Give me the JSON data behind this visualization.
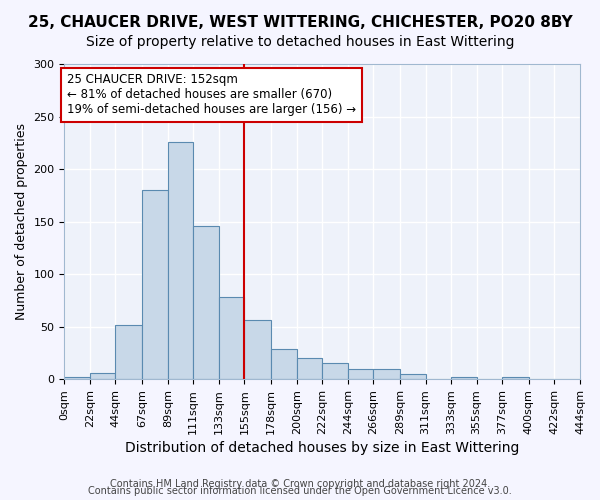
{
  "title": "25, CHAUCER DRIVE, WEST WITTERING, CHICHESTER, PO20 8BY",
  "subtitle": "Size of property relative to detached houses in East Wittering",
  "xlabel": "Distribution of detached houses by size in East Wittering",
  "ylabel": "Number of detached properties",
  "bar_color": "#c8d8e8",
  "bar_edge_color": "#5a8ab0",
  "background_color": "#eef2fa",
  "grid_color": "#ffffff",
  "vline_x": 155,
  "vline_color": "#cc0000",
  "annotation_title": "25 CHAUCER DRIVE: 152sqm",
  "annotation_line1": "← 81% of detached houses are smaller (670)",
  "annotation_line2": "19% of semi-detached houses are larger (156) →",
  "annotation_box_color": "#ffffff",
  "annotation_box_edge": "#cc0000",
  "bin_edges": [
    0,
    22,
    44,
    67,
    89,
    111,
    133,
    155,
    178,
    200,
    222,
    244,
    266,
    289,
    311,
    333,
    355,
    377,
    400,
    422,
    444
  ],
  "bin_heights": [
    2,
    6,
    52,
    180,
    226,
    146,
    78,
    56,
    29,
    20,
    15,
    10,
    10,
    5,
    0,
    2,
    0,
    2,
    0,
    0
  ],
  "tick_labels": [
    "0sqm",
    "22sqm",
    "44sqm",
    "67sqm",
    "89sqm",
    "111sqm",
    "133sqm",
    "155sqm",
    "178sqm",
    "200sqm",
    "222sqm",
    "244sqm",
    "266sqm",
    "289sqm",
    "311sqm",
    "333sqm",
    "355sqm",
    "377sqm",
    "400sqm",
    "422sqm",
    "444sqm"
  ],
  "ylim": [
    0,
    300
  ],
  "yticks": [
    0,
    50,
    100,
    150,
    200,
    250,
    300
  ],
  "footer1": "Contains HM Land Registry data © Crown copyright and database right 2024.",
  "footer2": "Contains public sector information licensed under the Open Government Licence v3.0.",
  "title_fontsize": 11,
  "subtitle_fontsize": 10,
  "xlabel_fontsize": 10,
  "ylabel_fontsize": 9,
  "tick_fontsize": 8,
  "footer_fontsize": 7
}
